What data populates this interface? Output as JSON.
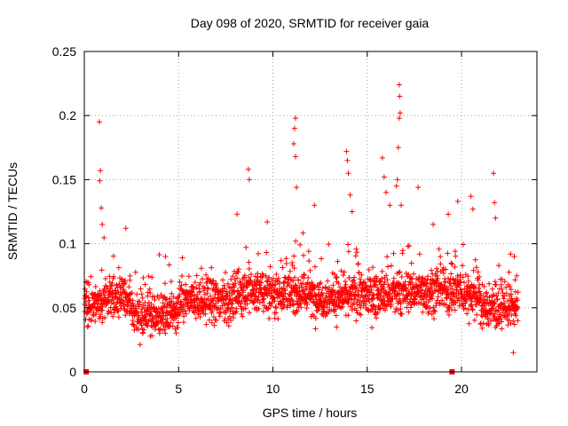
{
  "chart_data": {
    "type": "scatter",
    "title": "Day 098 of 2020, SRMTID for receiver gaia",
    "xlabel": "GPS time / hours",
    "ylabel": "SRMTID / TECUs",
    "xlim": [
      0,
      24
    ],
    "ylim": [
      0,
      0.25
    ],
    "x_ticks": [
      0,
      5,
      10,
      15,
      20
    ],
    "x_tick_labels": [
      "0",
      "5",
      "10",
      "15",
      "20"
    ],
    "y_ticks": [
      0,
      0.05,
      0.1,
      0.15,
      0.2,
      0.25
    ],
    "y_tick_labels": [
      "0",
      "0.05",
      "0.1",
      "0.15",
      "0.2",
      "0.25"
    ],
    "grid": true,
    "marker": "plus",
    "color": "#ff0000",
    "series": [
      {
        "name": "SRMTID",
        "note": "~2200 points; dense noisy cloud 0.02-0.10 TECU over 0-23 h",
        "peaks": [
          {
            "x": 0.8,
            "y": 0.195
          },
          {
            "x": 0.85,
            "y": 0.157
          },
          {
            "x": 0.82,
            "y": 0.149
          },
          {
            "x": 0.9,
            "y": 0.128
          },
          {
            "x": 0.95,
            "y": 0.115
          },
          {
            "x": 2.2,
            "y": 0.112
          },
          {
            "x": 4.3,
            "y": 0.09
          },
          {
            "x": 8.7,
            "y": 0.158
          },
          {
            "x": 8.75,
            "y": 0.15
          },
          {
            "x": 8.1,
            "y": 0.123
          },
          {
            "x": 9.7,
            "y": 0.117
          },
          {
            "x": 11.2,
            "y": 0.198
          },
          {
            "x": 11.15,
            "y": 0.19
          },
          {
            "x": 11.1,
            "y": 0.178
          },
          {
            "x": 11.2,
            "y": 0.168
          },
          {
            "x": 11.25,
            "y": 0.144
          },
          {
            "x": 12.2,
            "y": 0.13
          },
          {
            "x": 13.9,
            "y": 0.172
          },
          {
            "x": 13.95,
            "y": 0.165
          },
          {
            "x": 14.0,
            "y": 0.155
          },
          {
            "x": 14.1,
            "y": 0.138
          },
          {
            "x": 14.2,
            "y": 0.125
          },
          {
            "x": 15.8,
            "y": 0.167
          },
          {
            "x": 15.9,
            "y": 0.152
          },
          {
            "x": 16.0,
            "y": 0.14
          },
          {
            "x": 16.2,
            "y": 0.13
          },
          {
            "x": 16.7,
            "y": 0.224
          },
          {
            "x": 16.72,
            "y": 0.215
          },
          {
            "x": 16.75,
            "y": 0.202
          },
          {
            "x": 16.7,
            "y": 0.198
          },
          {
            "x": 16.65,
            "y": 0.175
          },
          {
            "x": 16.6,
            "y": 0.15
          },
          {
            "x": 16.55,
            "y": 0.145
          },
          {
            "x": 16.8,
            "y": 0.13
          },
          {
            "x": 17.7,
            "y": 0.144
          },
          {
            "x": 18.5,
            "y": 0.115
          },
          {
            "x": 19.3,
            "y": 0.123
          },
          {
            "x": 19.8,
            "y": 0.133
          },
          {
            "x": 20.5,
            "y": 0.137
          },
          {
            "x": 20.6,
            "y": 0.127
          },
          {
            "x": 21.7,
            "y": 0.155
          },
          {
            "x": 21.75,
            "y": 0.132
          },
          {
            "x": 21.8,
            "y": 0.12
          },
          {
            "x": 22.8,
            "y": 0.09
          },
          {
            "x": 22.75,
            "y": 0.015
          }
        ]
      }
    ],
    "markers_on_axis": [
      {
        "x": 0.1,
        "y": 0.0
      },
      {
        "x": 19.5,
        "y": 0.0
      }
    ]
  }
}
